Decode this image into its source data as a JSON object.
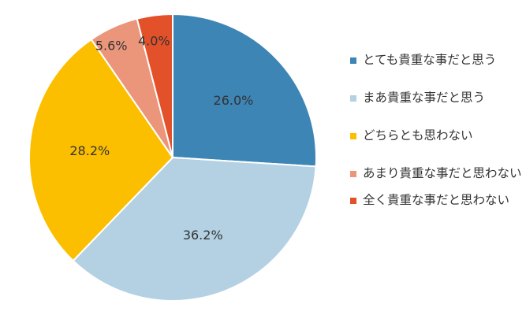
{
  "chart_data": {
    "type": "pie",
    "title": "",
    "start_angle_deg": 0,
    "direction": "clockwise",
    "legend_position": "right",
    "slices": [
      {
        "label": "とても貴重な事だと思う",
        "value": 26.0,
        "value_label": "26.0%",
        "color": "#3d85b5"
      },
      {
        "label": "まあ貴重な事だと思う",
        "value": 36.2,
        "value_label": "36.2%",
        "color": "#b3d1e3"
      },
      {
        "label": "どちらとも思わない",
        "value": 28.2,
        "value_label": "28.2%",
        "color": "#fbbf00"
      },
      {
        "label": "あまり貴重な事だと思わない",
        "value": 5.6,
        "value_label": "5.6%",
        "color": "#eb967b"
      },
      {
        "label": "全く貴重な事だと思わない",
        "value": 4.0,
        "value_label": "4.0%",
        "color": "#e3512a"
      }
    ]
  },
  "legend": {
    "items": [
      {
        "label": "とても貴重な事だと思う",
        "color": "#3d85b5"
      },
      {
        "label": "まあ貴重な事だと思う",
        "color": "#b3d1e3"
      },
      {
        "label": "どちらとも思わない",
        "color": "#fbbf00"
      },
      {
        "label": "あまり貴重な事だと思わない",
        "color": "#eb967b"
      },
      {
        "label": "全く貴重な事だと思わない",
        "color": "#e3512a"
      }
    ]
  }
}
